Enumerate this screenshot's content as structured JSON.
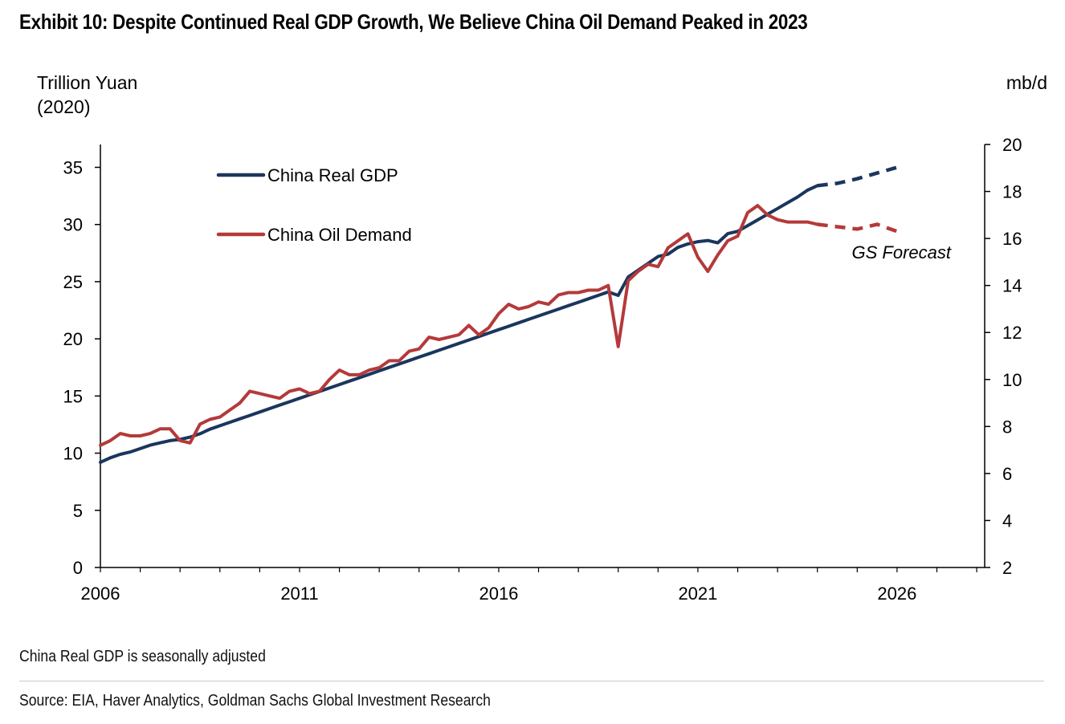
{
  "title": "Exhibit 10: Despite Continued Real GDP Growth, We Believe China Oil Demand Peaked in 2023",
  "footnote": "China Real GDP is seasonally adjusted",
  "source": "Source: EIA, Haver Analytics, Goldman Sachs Global Investment Research",
  "chart_data": {
    "type": "line",
    "title": "Exhibit 10: Despite Continued Real GDP Growth, We Believe China Oil Demand Peaked in 2023",
    "ylabel_left": "Trillion Yuan (2020)",
    "ylabel_right": "mb/d",
    "xlim": [
      2006,
      2028.2
    ],
    "ylim_left": [
      0,
      37
    ],
    "ylim_right": [
      2,
      20
    ],
    "xticks": [
      "2006",
      "2011",
      "2016",
      "2021",
      "2026"
    ],
    "xtick_values": [
      2006,
      2011,
      2016,
      2021,
      2026
    ],
    "yticks_left": [
      0,
      5,
      10,
      15,
      20,
      25,
      30,
      35
    ],
    "yticks_right": [
      2,
      4,
      6,
      8,
      10,
      12,
      14,
      16,
      18,
      20
    ],
    "grid": false,
    "legend": "top-left",
    "annotation": "GS Forecast",
    "series": [
      {
        "name": "China Real GDP",
        "axis": "left",
        "color": "#1b365d",
        "x": [
          2006.0,
          2006.25,
          2006.5,
          2006.75,
          2007.0,
          2007.25,
          2007.5,
          2007.75,
          2008.0,
          2008.25,
          2008.5,
          2008.75,
          2009.0,
          2009.25,
          2009.5,
          2009.75,
          2010.0,
          2010.25,
          2010.5,
          2010.75,
          2011.0,
          2011.25,
          2011.5,
          2011.75,
          2012.0,
          2012.25,
          2012.5,
          2012.75,
          2013.0,
          2013.25,
          2013.5,
          2013.75,
          2014.0,
          2014.25,
          2014.5,
          2014.75,
          2015.0,
          2015.25,
          2015.5,
          2015.75,
          2016.0,
          2016.25,
          2016.5,
          2016.75,
          2017.0,
          2017.25,
          2017.5,
          2017.75,
          2018.0,
          2018.25,
          2018.5,
          2018.75,
          2019.0,
          2019.25,
          2019.5,
          2019.75,
          2020.0,
          2020.25,
          2020.5,
          2020.75,
          2021.0,
          2021.25,
          2021.5,
          2021.75,
          2022.0,
          2022.25,
          2022.5,
          2022.75,
          2023.0,
          2023.25,
          2023.5,
          2023.75,
          2024.0
        ],
        "values": [
          9.2,
          9.6,
          9.9,
          10.1,
          10.4,
          10.7,
          10.9,
          11.1,
          11.2,
          11.4,
          11.7,
          12.1,
          12.4,
          12.7,
          13.0,
          13.3,
          13.6,
          13.9,
          14.2,
          14.5,
          14.8,
          15.1,
          15.4,
          15.7,
          16.0,
          16.3,
          16.6,
          16.9,
          17.2,
          17.5,
          17.8,
          18.1,
          18.4,
          18.7,
          19.0,
          19.3,
          19.6,
          19.9,
          20.2,
          20.5,
          20.8,
          21.1,
          21.4,
          21.7,
          22.0,
          22.3,
          22.6,
          22.9,
          23.2,
          23.5,
          23.8,
          24.1,
          23.8,
          25.4,
          26.0,
          26.6,
          27.2,
          27.4,
          28.0,
          28.3,
          28.5,
          28.6,
          28.4,
          29.2,
          29.4,
          29.9,
          30.4,
          30.9,
          31.4,
          31.9,
          32.4,
          33.0,
          33.4
        ],
        "forecast_x": [
          2024.0,
          2024.5,
          2025.0,
          2025.5,
          2026.0
        ],
        "forecast_values": [
          33.4,
          33.6,
          34.0,
          34.5,
          35.0
        ]
      },
      {
        "name": "China Oil Demand",
        "axis": "right",
        "color": "#b5393a",
        "x": [
          2006.0,
          2006.25,
          2006.5,
          2006.75,
          2007.0,
          2007.25,
          2007.5,
          2007.75,
          2008.0,
          2008.25,
          2008.5,
          2008.75,
          2009.0,
          2009.25,
          2009.5,
          2009.75,
          2010.0,
          2010.25,
          2010.5,
          2010.75,
          2011.0,
          2011.25,
          2011.5,
          2011.75,
          2012.0,
          2012.25,
          2012.5,
          2012.75,
          2013.0,
          2013.25,
          2013.5,
          2013.75,
          2014.0,
          2014.25,
          2014.5,
          2014.75,
          2015.0,
          2015.25,
          2015.5,
          2015.75,
          2016.0,
          2016.25,
          2016.5,
          2016.75,
          2017.0,
          2017.25,
          2017.5,
          2017.75,
          2018.0,
          2018.25,
          2018.5,
          2018.75,
          2019.0,
          2019.25,
          2019.5,
          2019.75,
          2020.0,
          2020.25,
          2020.5,
          2020.75,
          2021.0,
          2021.25,
          2021.5,
          2021.75,
          2022.0,
          2022.25,
          2022.5,
          2022.75,
          2023.0,
          2023.25,
          2023.5,
          2023.75,
          2024.0
        ],
        "values": [
          7.2,
          7.4,
          7.7,
          7.6,
          7.6,
          7.7,
          7.9,
          7.9,
          7.4,
          7.3,
          8.1,
          8.3,
          8.4,
          8.7,
          9.0,
          9.5,
          9.4,
          9.3,
          9.2,
          9.5,
          9.6,
          9.4,
          9.5,
          10.0,
          10.4,
          10.2,
          10.2,
          10.4,
          10.5,
          10.8,
          10.8,
          11.2,
          11.3,
          11.8,
          11.7,
          11.8,
          11.9,
          12.3,
          11.9,
          12.2,
          12.8,
          13.2,
          13.0,
          13.1,
          13.3,
          13.2,
          13.6,
          13.7,
          13.7,
          13.8,
          13.8,
          14.0,
          11.4,
          14.2,
          14.6,
          14.9,
          14.8,
          15.6,
          15.9,
          16.2,
          15.2,
          14.6,
          15.3,
          15.9,
          16.1,
          17.1,
          17.4,
          17.0,
          16.8,
          16.7,
          16.7,
          16.7,
          16.6
        ],
        "forecast_x": [
          2024.0,
          2024.5,
          2025.0,
          2025.5,
          2026.0
        ],
        "forecast_values": [
          16.6,
          16.5,
          16.4,
          16.6,
          16.3
        ]
      }
    ]
  }
}
